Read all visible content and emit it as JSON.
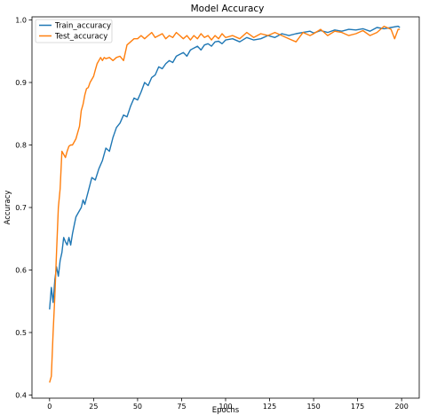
{
  "chart_data": {
    "type": "line",
    "title": "Model Accuracy",
    "xlabel": "Epochs",
    "ylabel": "Accuracy",
    "xlim": [
      -10,
      210
    ],
    "ylim": [
      0.395,
      1.005
    ],
    "xticks": [
      0,
      25,
      50,
      75,
      100,
      125,
      150,
      175,
      200
    ],
    "yticks": [
      0.4,
      0.5,
      0.6,
      0.7,
      0.8,
      0.9,
      1.0
    ],
    "grid": false,
    "legend_position": "top-left",
    "series": [
      {
        "name": "Train_accuracy",
        "color": "#1f77b4",
        "points": [
          [
            0,
            0.537
          ],
          [
            1,
            0.572
          ],
          [
            2,
            0.548
          ],
          [
            3,
            0.585
          ],
          [
            4,
            0.605
          ],
          [
            5,
            0.59
          ],
          [
            6,
            0.615
          ],
          [
            7,
            0.628
          ],
          [
            8,
            0.652
          ],
          [
            9,
            0.645
          ],
          [
            10,
            0.64
          ],
          [
            11,
            0.652
          ],
          [
            12,
            0.64
          ],
          [
            13,
            0.658
          ],
          [
            14,
            0.672
          ],
          [
            15,
            0.685
          ],
          [
            16,
            0.69
          ],
          [
            17,
            0.695
          ],
          [
            18,
            0.7
          ],
          [
            19,
            0.712
          ],
          [
            20,
            0.705
          ],
          [
            22,
            0.726
          ],
          [
            24,
            0.748
          ],
          [
            26,
            0.744
          ],
          [
            28,
            0.762
          ],
          [
            30,
            0.775
          ],
          [
            32,
            0.795
          ],
          [
            34,
            0.79
          ],
          [
            36,
            0.812
          ],
          [
            38,
            0.828
          ],
          [
            40,
            0.835
          ],
          [
            42,
            0.848
          ],
          [
            44,
            0.845
          ],
          [
            46,
            0.862
          ],
          [
            48,
            0.875
          ],
          [
            50,
            0.872
          ],
          [
            52,
            0.885
          ],
          [
            54,
            0.9
          ],
          [
            56,
            0.895
          ],
          [
            58,
            0.908
          ],
          [
            60,
            0.912
          ],
          [
            62,
            0.925
          ],
          [
            64,
            0.922
          ],
          [
            66,
            0.93
          ],
          [
            68,
            0.935
          ],
          [
            70,
            0.932
          ],
          [
            72,
            0.942
          ],
          [
            74,
            0.945
          ],
          [
            76,
            0.948
          ],
          [
            78,
            0.942
          ],
          [
            80,
            0.952
          ],
          [
            82,
            0.955
          ],
          [
            84,
            0.958
          ],
          [
            86,
            0.952
          ],
          [
            88,
            0.96
          ],
          [
            90,
            0.962
          ],
          [
            92,
            0.958
          ],
          [
            94,
            0.965
          ],
          [
            96,
            0.966
          ],
          [
            98,
            0.962
          ],
          [
            100,
            0.968
          ],
          [
            104,
            0.97
          ],
          [
            108,
            0.965
          ],
          [
            112,
            0.972
          ],
          [
            116,
            0.968
          ],
          [
            120,
            0.97
          ],
          [
            124,
            0.975
          ],
          [
            128,
            0.972
          ],
          [
            132,
            0.978
          ],
          [
            136,
            0.975
          ],
          [
            140,
            0.978
          ],
          [
            144,
            0.98
          ],
          [
            148,
            0.982
          ],
          [
            150,
            0.979
          ],
          [
            154,
            0.983
          ],
          [
            158,
            0.98
          ],
          [
            162,
            0.984
          ],
          [
            166,
            0.982
          ],
          [
            170,
            0.985
          ],
          [
            174,
            0.984
          ],
          [
            178,
            0.986
          ],
          [
            182,
            0.982
          ],
          [
            186,
            0.988
          ],
          [
            190,
            0.986
          ],
          [
            194,
            0.988
          ],
          [
            198,
            0.99
          ],
          [
            199,
            0.988
          ]
        ]
      },
      {
        "name": "Test_accuracy",
        "color": "#ff7f0e",
        "points": [
          [
            0,
            0.42
          ],
          [
            1,
            0.43
          ],
          [
            2,
            0.5
          ],
          [
            3,
            0.56
          ],
          [
            4,
            0.63
          ],
          [
            5,
            0.7
          ],
          [
            6,
            0.73
          ],
          [
            7,
            0.79
          ],
          [
            8,
            0.785
          ],
          [
            9,
            0.78
          ],
          [
            10,
            0.79
          ],
          [
            11,
            0.798
          ],
          [
            12,
            0.8
          ],
          [
            13,
            0.8
          ],
          [
            14,
            0.805
          ],
          [
            15,
            0.81
          ],
          [
            16,
            0.82
          ],
          [
            17,
            0.83
          ],
          [
            18,
            0.855
          ],
          [
            19,
            0.865
          ],
          [
            20,
            0.88
          ],
          [
            21,
            0.89
          ],
          [
            22,
            0.892
          ],
          [
            23,
            0.9
          ],
          [
            24,
            0.905
          ],
          [
            25,
            0.91
          ],
          [
            26,
            0.92
          ],
          [
            27,
            0.93
          ],
          [
            28,
            0.935
          ],
          [
            29,
            0.94
          ],
          [
            30,
            0.935
          ],
          [
            31,
            0.94
          ],
          [
            32,
            0.938
          ],
          [
            34,
            0.94
          ],
          [
            36,
            0.935
          ],
          [
            38,
            0.94
          ],
          [
            40,
            0.942
          ],
          [
            42,
            0.935
          ],
          [
            44,
            0.96
          ],
          [
            46,
            0.965
          ],
          [
            48,
            0.97
          ],
          [
            50,
            0.97
          ],
          [
            52,
            0.975
          ],
          [
            54,
            0.97
          ],
          [
            56,
            0.975
          ],
          [
            58,
            0.98
          ],
          [
            60,
            0.972
          ],
          [
            62,
            0.975
          ],
          [
            64,
            0.978
          ],
          [
            66,
            0.97
          ],
          [
            68,
            0.975
          ],
          [
            70,
            0.972
          ],
          [
            72,
            0.98
          ],
          [
            74,
            0.975
          ],
          [
            76,
            0.97
          ],
          [
            78,
            0.975
          ],
          [
            80,
            0.968
          ],
          [
            82,
            0.975
          ],
          [
            84,
            0.97
          ],
          [
            86,
            0.978
          ],
          [
            88,
            0.972
          ],
          [
            90,
            0.975
          ],
          [
            92,
            0.968
          ],
          [
            94,
            0.975
          ],
          [
            96,
            0.97
          ],
          [
            98,
            0.978
          ],
          [
            100,
            0.972
          ],
          [
            104,
            0.975
          ],
          [
            108,
            0.97
          ],
          [
            112,
            0.98
          ],
          [
            116,
            0.972
          ],
          [
            120,
            0.978
          ],
          [
            124,
            0.975
          ],
          [
            128,
            0.98
          ],
          [
            132,
            0.975
          ],
          [
            136,
            0.97
          ],
          [
            140,
            0.965
          ],
          [
            144,
            0.98
          ],
          [
            148,
            0.975
          ],
          [
            150,
            0.978
          ],
          [
            154,
            0.985
          ],
          [
            158,
            0.975
          ],
          [
            162,
            0.982
          ],
          [
            166,
            0.98
          ],
          [
            170,
            0.975
          ],
          [
            174,
            0.978
          ],
          [
            178,
            0.983
          ],
          [
            182,
            0.975
          ],
          [
            186,
            0.98
          ],
          [
            190,
            0.99
          ],
          [
            194,
            0.985
          ],
          [
            196,
            0.97
          ],
          [
            198,
            0.985
          ],
          [
            199,
            0.985
          ]
        ]
      }
    ]
  }
}
